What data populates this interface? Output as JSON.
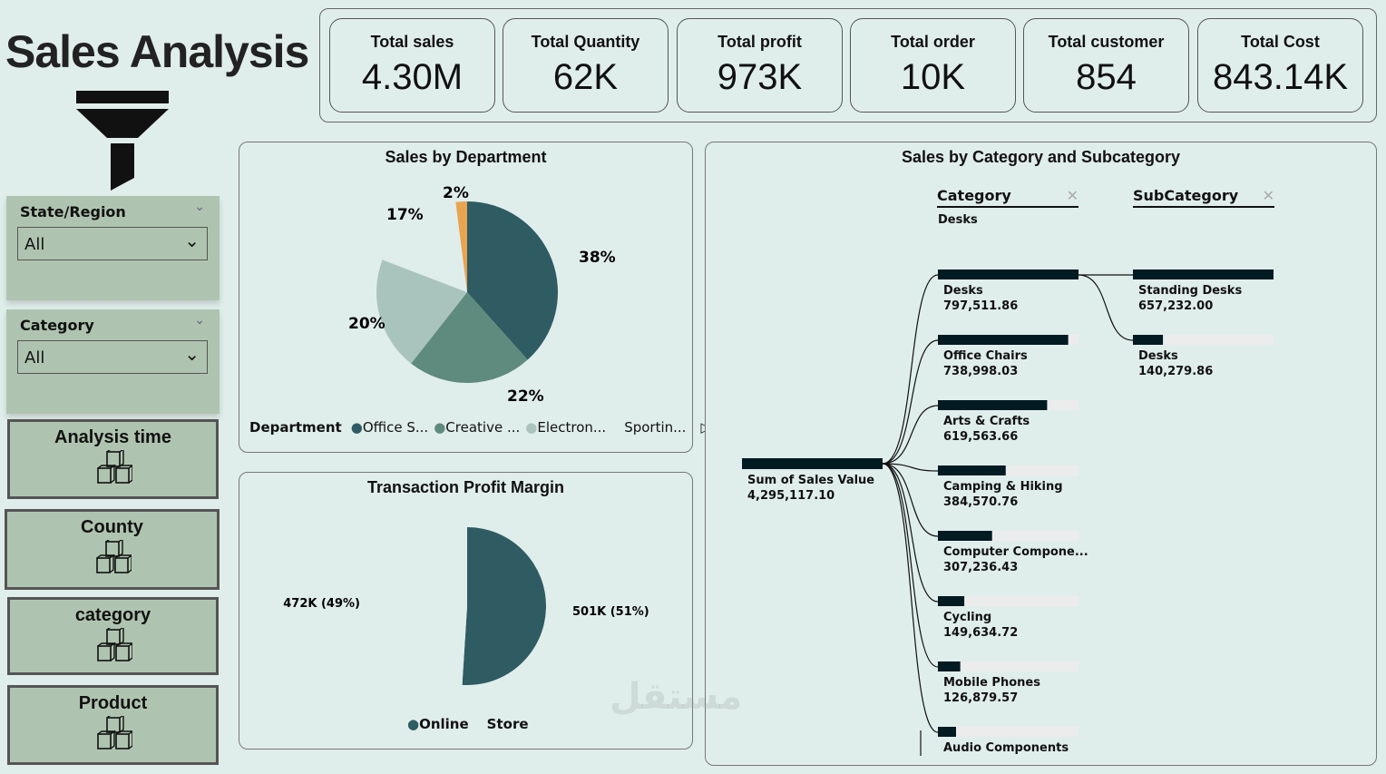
{
  "header": {
    "title": "Sales Analysis"
  },
  "kpis": [
    {
      "label": "Total sales",
      "value": "4.30M"
    },
    {
      "label": "Total Quantity",
      "value": "62K"
    },
    {
      "label": "Total profit",
      "value": "973K"
    },
    {
      "label": "Total order",
      "value": "10K"
    },
    {
      "label": "Total customer",
      "value": "854"
    },
    {
      "label": "Total Cost",
      "value": "843.14K"
    }
  ],
  "slicers": [
    {
      "label": "State/Region",
      "value": "All"
    },
    {
      "label": "Category",
      "value": "All"
    }
  ],
  "nav": [
    {
      "label": "Analysis time"
    },
    {
      "label": "County"
    },
    {
      "label": "category"
    },
    {
      "label": "Product"
    }
  ],
  "colors": {
    "dark": "#2f5c62",
    "medium": "#5e8b7e",
    "light": "#a8c4bd",
    "orange": "#e8a451",
    "bg": "#e0eeeb",
    "panel": "#afc4b0",
    "bar": "#021a22"
  },
  "chart_data": [
    {
      "type": "pie",
      "title": "Sales by Department",
      "legend_title": "Department",
      "slices": [
        {
          "name": "Office S...",
          "value": 38,
          "label": "38%",
          "color": "#2f5c62"
        },
        {
          "name": "Creative ...",
          "value": 22,
          "label": "22%",
          "color": "#5e8b7e"
        },
        {
          "name": "Electron...",
          "value": 20,
          "label": "20%",
          "color": "#a8c4bd"
        },
        {
          "name": "Sportin...",
          "value": 17,
          "label": "17%",
          "color": "#e0eeeb"
        },
        {
          "name": "",
          "value": 2,
          "label": "2%",
          "color": "#e8a451"
        }
      ]
    },
    {
      "type": "pie",
      "title": "Transaction Profit Margin",
      "slices": [
        {
          "name": "Online",
          "value": 51,
          "label": "501K (51%)",
          "color": "#2f5c62"
        },
        {
          "name": "Store",
          "value": 49,
          "label": "472K (49%)",
          "color": "#e0eeeb"
        }
      ]
    },
    {
      "type": "decomposition-tree",
      "title": "Sales by Category and Subcategory",
      "levels": [
        "Category",
        "SubCategory"
      ],
      "selected": "Desks",
      "root": {
        "label": "Sum of Sales Value",
        "value": "4,295,117.10"
      },
      "categories": [
        {
          "name": "Desks",
          "value": 797511.86,
          "text": "797,511.86"
        },
        {
          "name": "Office Chairs",
          "value": 738998.03,
          "text": "738,998.03"
        },
        {
          "name": "Arts & Crafts",
          "value": 619563.66,
          "text": "619,563.66"
        },
        {
          "name": "Camping & Hiking",
          "value": 384570.76,
          "text": "384,570.76"
        },
        {
          "name": "Computer Compone...",
          "value": 307236.43,
          "text": "307,236.43"
        },
        {
          "name": "Cycling",
          "value": 149634.72,
          "text": "149,634.72"
        },
        {
          "name": "Mobile Phones",
          "value": 126879.57,
          "text": "126,879.57"
        },
        {
          "name": "Audio Components",
          "value": 100000,
          "text": ""
        }
      ],
      "subcategories": [
        {
          "name": "Standing Desks",
          "value": 657232.0,
          "text": "657,232.00"
        },
        {
          "name": "Desks",
          "value": 140279.86,
          "text": "140,279.86"
        }
      ]
    }
  ],
  "watermark": "مستقل"
}
